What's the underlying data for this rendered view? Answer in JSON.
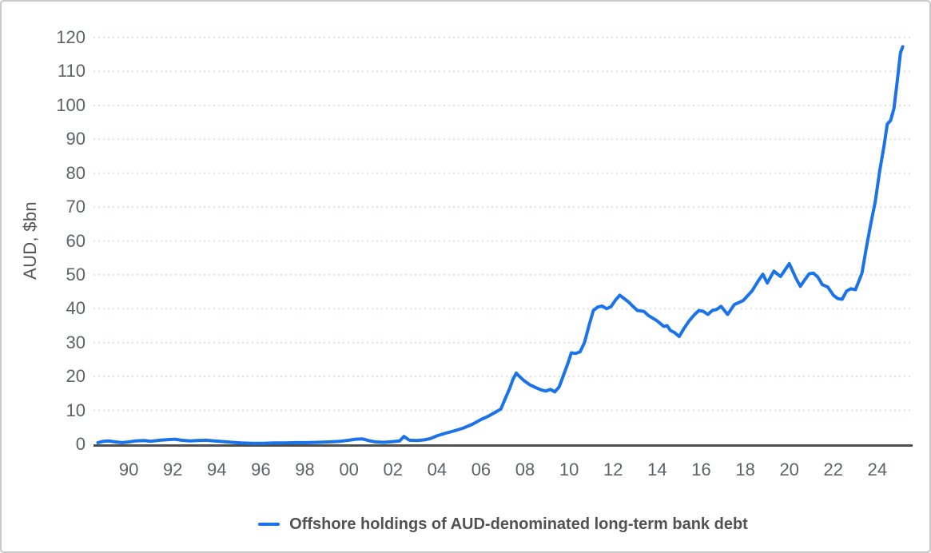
{
  "chart": {
    "y_axis_title": "AUD, $bn",
    "legend_label": "Offshore holdings of AUD-denominated long-term bank debt",
    "colors": {
      "line": "#1a73e8",
      "grid": "#d8e3ea",
      "axis": "#4f4f4f",
      "tick_text": "#5f6368",
      "legend_text": "#525252"
    }
  },
  "chart_data": {
    "type": "line",
    "title": "",
    "xlabel": "",
    "ylabel": "AUD, $bn",
    "ylim": [
      0,
      120
    ],
    "xlim": [
      1988.4,
      2025.6
    ],
    "y_ticks": [
      0,
      10,
      20,
      30,
      40,
      50,
      60,
      70,
      80,
      90,
      100,
      110,
      120
    ],
    "x_ticks": [
      {
        "year": 1990,
        "label": "90"
      },
      {
        "year": 1992,
        "label": "92"
      },
      {
        "year": 1994,
        "label": "94"
      },
      {
        "year": 1996,
        "label": "96"
      },
      {
        "year": 1998,
        "label": "98"
      },
      {
        "year": 2000,
        "label": "00"
      },
      {
        "year": 2002,
        "label": "02"
      },
      {
        "year": 2004,
        "label": "04"
      },
      {
        "year": 2006,
        "label": "06"
      },
      {
        "year": 2008,
        "label": "08"
      },
      {
        "year": 2010,
        "label": "10"
      },
      {
        "year": 2012,
        "label": "12"
      },
      {
        "year": 2014,
        "label": "14"
      },
      {
        "year": 2016,
        "label": "16"
      },
      {
        "year": 2018,
        "label": "18"
      },
      {
        "year": 2020,
        "label": "20"
      },
      {
        "year": 2022,
        "label": "22"
      },
      {
        "year": 2024,
        "label": "24"
      }
    ],
    "grid": "horizontal-dotted",
    "legend_position": "bottom-center",
    "series": [
      {
        "name": "Offshore holdings of AUD-denominated long-term bank debt",
        "points": [
          [
            1988.6,
            0.5
          ],
          [
            1988.85,
            0.9
          ],
          [
            1989.1,
            1.0
          ],
          [
            1989.4,
            0.7
          ],
          [
            1989.7,
            0.5
          ],
          [
            1990.0,
            0.7
          ],
          [
            1990.3,
            1.0
          ],
          [
            1990.7,
            1.1
          ],
          [
            1991.0,
            0.9
          ],
          [
            1991.4,
            1.2
          ],
          [
            1991.8,
            1.4
          ],
          [
            1992.1,
            1.5
          ],
          [
            1992.4,
            1.2
          ],
          [
            1992.8,
            1.0
          ],
          [
            1993.1,
            1.1
          ],
          [
            1993.5,
            1.2
          ],
          [
            1993.9,
            1.0
          ],
          [
            1994.3,
            0.8
          ],
          [
            1994.7,
            0.6
          ],
          [
            1995.1,
            0.4
          ],
          [
            1995.6,
            0.3
          ],
          [
            1996.1,
            0.3
          ],
          [
            1996.6,
            0.4
          ],
          [
            1997.1,
            0.4
          ],
          [
            1997.6,
            0.5
          ],
          [
            1998.1,
            0.5
          ],
          [
            1998.6,
            0.6
          ],
          [
            1999.1,
            0.7
          ],
          [
            1999.6,
            0.9
          ],
          [
            2000.0,
            1.2
          ],
          [
            2000.3,
            1.5
          ],
          [
            2000.6,
            1.6
          ],
          [
            2000.9,
            1.1
          ],
          [
            2001.2,
            0.7
          ],
          [
            2001.6,
            0.6
          ],
          [
            2002.0,
            0.8
          ],
          [
            2002.3,
            1.0
          ],
          [
            2002.5,
            2.3
          ],
          [
            2002.75,
            1.2
          ],
          [
            2003.1,
            1.1
          ],
          [
            2003.4,
            1.3
          ],
          [
            2003.7,
            1.7
          ],
          [
            2004.0,
            2.5
          ],
          [
            2004.4,
            3.3
          ],
          [
            2004.8,
            4.0
          ],
          [
            2005.2,
            4.8
          ],
          [
            2005.6,
            5.9
          ],
          [
            2006.0,
            7.3
          ],
          [
            2006.3,
            8.2
          ],
          [
            2006.6,
            9.3
          ],
          [
            2006.9,
            10.4
          ],
          [
            2007.1,
            13.5
          ],
          [
            2007.3,
            16.5
          ],
          [
            2007.45,
            19.2
          ],
          [
            2007.6,
            21.0
          ],
          [
            2007.75,
            20.0
          ],
          [
            2007.95,
            18.8
          ],
          [
            2008.2,
            17.6
          ],
          [
            2008.5,
            16.7
          ],
          [
            2008.75,
            16.0
          ],
          [
            2008.95,
            15.7
          ],
          [
            2009.15,
            16.2
          ],
          [
            2009.35,
            15.5
          ],
          [
            2009.55,
            17.0
          ],
          [
            2009.75,
            20.5
          ],
          [
            2009.95,
            24.0
          ],
          [
            2010.1,
            27.0
          ],
          [
            2010.3,
            26.8
          ],
          [
            2010.5,
            27.3
          ],
          [
            2010.7,
            30.0
          ],
          [
            2010.9,
            35.0
          ],
          [
            2011.1,
            39.5
          ],
          [
            2011.3,
            40.5
          ],
          [
            2011.5,
            40.8
          ],
          [
            2011.7,
            40.0
          ],
          [
            2011.9,
            40.6
          ],
          [
            2012.1,
            42.5
          ],
          [
            2012.3,
            44.0
          ],
          [
            2012.5,
            43.0
          ],
          [
            2012.7,
            42.0
          ],
          [
            2012.9,
            40.7
          ],
          [
            2013.1,
            39.5
          ],
          [
            2013.4,
            39.2
          ],
          [
            2013.6,
            38.0
          ],
          [
            2013.8,
            37.2
          ],
          [
            2014.0,
            36.4
          ],
          [
            2014.3,
            34.8
          ],
          [
            2014.45,
            35.0
          ],
          [
            2014.6,
            33.6
          ],
          [
            2014.8,
            32.9
          ],
          [
            2015.0,
            31.8
          ],
          [
            2015.2,
            34.0
          ],
          [
            2015.45,
            36.4
          ],
          [
            2015.7,
            38.3
          ],
          [
            2015.9,
            39.5
          ],
          [
            2016.1,
            39.2
          ],
          [
            2016.3,
            38.3
          ],
          [
            2016.5,
            39.5
          ],
          [
            2016.7,
            39.8
          ],
          [
            2016.9,
            40.7
          ],
          [
            2017.2,
            38.3
          ],
          [
            2017.5,
            41.2
          ],
          [
            2017.9,
            42.4
          ],
          [
            2018.3,
            45.2
          ],
          [
            2018.6,
            48.3
          ],
          [
            2018.8,
            50.2
          ],
          [
            2019.0,
            47.6
          ],
          [
            2019.3,
            51.1
          ],
          [
            2019.6,
            49.5
          ],
          [
            2020.0,
            53.3
          ],
          [
            2020.3,
            49.0
          ],
          [
            2020.5,
            46.6
          ],
          [
            2020.7,
            48.5
          ],
          [
            2020.9,
            50.3
          ],
          [
            2021.1,
            50.5
          ],
          [
            2021.3,
            49.3
          ],
          [
            2021.5,
            47.1
          ],
          [
            2021.75,
            46.4
          ],
          [
            2022.0,
            44.0
          ],
          [
            2022.2,
            43.0
          ],
          [
            2022.4,
            42.8
          ],
          [
            2022.6,
            45.2
          ],
          [
            2022.8,
            45.9
          ],
          [
            2023.0,
            45.6
          ],
          [
            2023.15,
            48.0
          ],
          [
            2023.3,
            50.5
          ],
          [
            2023.5,
            58.0
          ],
          [
            2023.7,
            65.0
          ],
          [
            2023.9,
            71.5
          ],
          [
            2024.1,
            80.5
          ],
          [
            2024.3,
            88.0
          ],
          [
            2024.45,
            94.5
          ],
          [
            2024.6,
            95.5
          ],
          [
            2024.75,
            99.0
          ],
          [
            2024.9,
            107.0
          ],
          [
            2025.05,
            115.5
          ],
          [
            2025.15,
            117.3
          ]
        ]
      }
    ]
  }
}
